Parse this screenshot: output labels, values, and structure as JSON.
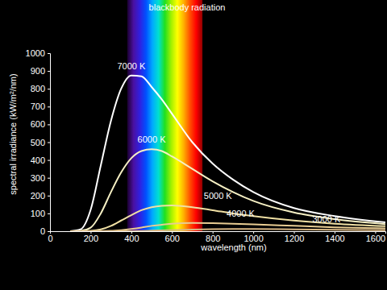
{
  "chart_data": {
    "type": "line",
    "title": "blackbody radiation",
    "x_label": "wavelength (nm)",
    "y_label": "spectral irradiance (kW/m²/nm)",
    "x": [
      100,
      150,
      200,
      250,
      300,
      350,
      400,
      450,
      500,
      550,
      600,
      700,
      800,
      900,
      1000,
      1200,
      1400,
      1650
    ],
    "series": [
      {
        "name": "7000 K",
        "color": "#ffffff",
        "values": [
          0,
          10,
          120,
          370,
          620,
          800,
          875,
          870,
          810,
          740,
          660,
          500,
          380,
          290,
          220,
          130,
          85,
          50
        ]
      },
      {
        "name": "6000 K",
        "color": "#f6f0c4",
        "values": [
          0,
          2,
          20,
          100,
          220,
          330,
          410,
          450,
          460,
          450,
          420,
          350,
          280,
          220,
          170,
          105,
          68,
          40
        ]
      },
      {
        "name": "5000 K",
        "color": "#f0e0a4",
        "values": [
          0,
          0,
          2,
          10,
          30,
          60,
          90,
          118,
          135,
          143,
          145,
          135,
          118,
          100,
          85,
          60,
          42,
          28
        ]
      },
      {
        "name": "4000 K",
        "color": "#e8cc92",
        "values": [
          0,
          0,
          0,
          1,
          2,
          6,
          12,
          20,
          30,
          36,
          42,
          46,
          45,
          42,
          38,
          30,
          22,
          16
        ]
      },
      {
        "name": "3000 K",
        "color": "#dab884",
        "values": [
          0,
          0,
          0,
          0,
          0,
          0,
          0.5,
          1.5,
          3,
          4.5,
          6,
          9,
          11,
          12,
          12,
          10,
          8,
          6
        ]
      }
    ],
    "spectrum": [
      380,
      750
    ],
    "xlim": [
      0,
      1650
    ],
    "xticks": [
      0,
      200,
      400,
      600,
      800,
      1000,
      1200,
      1400,
      1600
    ],
    "ylim": [
      0,
      1000
    ],
    "yticks": [
      0,
      100,
      200,
      300,
      400,
      500,
      600,
      700,
      800,
      900,
      1000
    ],
    "grid": false
  }
}
